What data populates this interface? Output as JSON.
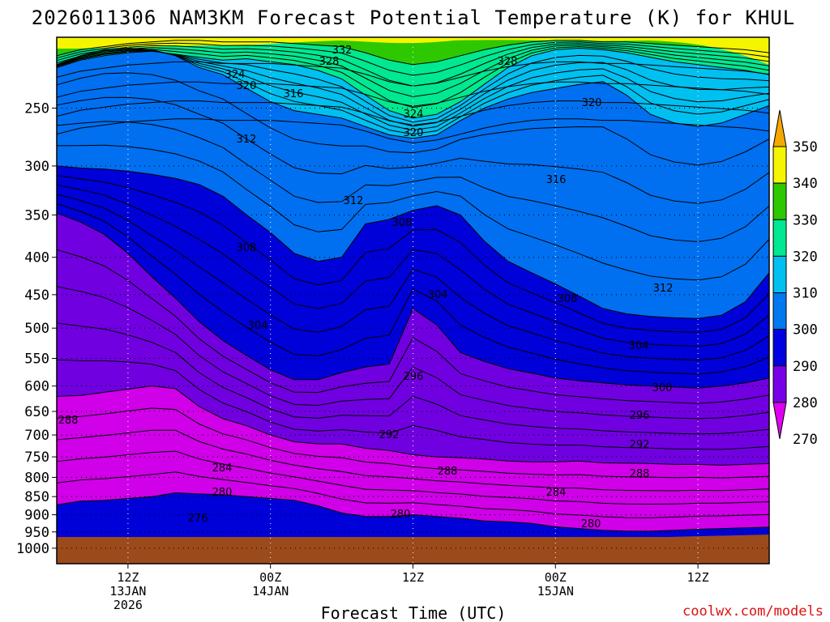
{
  "chart_data": {
    "type": "heatmap",
    "title": "2026011306 NAM3KM Forecast Potential Temperature (K) for KHUL",
    "xlabel": "Forecast Time (UTC)",
    "ylabel": "",
    "credit": "coolwx.com/models",
    "x_ticks": [
      {
        "hour": 6,
        "lines": [
          "12Z",
          "13JAN",
          "2026"
        ]
      },
      {
        "hour": 18,
        "lines": [
          "00Z",
          "14JAN"
        ]
      },
      {
        "hour": 30,
        "lines": [
          "12Z"
        ]
      },
      {
        "hour": 42,
        "lines": [
          "00Z",
          "15JAN"
        ]
      },
      {
        "hour": 54,
        "lines": [
          "12Z"
        ]
      }
    ],
    "xlim_hours": [
      0,
      60
    ],
    "y_ticks": [
      "250",
      "300",
      "350",
      "400",
      "450",
      "500",
      "550",
      "600",
      "650",
      "700",
      "750",
      "800",
      "850",
      "900",
      "950",
      "1000"
    ],
    "ylim_hpa": [
      1050,
      200
    ],
    "colorbar": {
      "labels": [
        "350",
        "340",
        "330",
        "320",
        "310",
        "300",
        "290",
        "280",
        "270"
      ],
      "colors": [
        "#f5a800",
        "#f5f500",
        "#2ec800",
        "#00e890",
        "#00c0f0",
        "#0078f0",
        "#0000e0",
        "#7800e8",
        "#e000f0"
      ]
    },
    "contour_labels": [
      "332",
      "328",
      "328",
      "324",
      "324",
      "320",
      "320",
      "320",
      "316",
      "316",
      "312",
      "312",
      "312",
      "308",
      "308",
      "308",
      "304",
      "304",
      "304",
      "300",
      "296",
      "296",
      "292",
      "292",
      "288",
      "288",
      "288",
      "284",
      "284",
      "280",
      "280",
      "280",
      "276"
    ],
    "series": [
      {
        "name": "theta_280",
        "color": "#d000e8",
        "values": [
          872,
          862,
          860,
          855,
          850,
          840,
          843,
          845,
          850,
          855,
          860,
          875,
          895,
          905,
          905,
          900,
          905,
          910,
          918,
          920,
          925,
          935,
          940,
          945,
          948,
          948,
          945,
          942,
          940,
          938,
          936
        ]
      },
      {
        "name": "theta_290",
        "color": "#7000e0",
        "values": [
          620,
          618,
          612,
          606,
          600,
          605,
          640,
          665,
          680,
          700,
          715,
          720,
          720,
          730,
          735,
          745,
          750,
          752,
          755,
          760,
          762,
          762,
          760,
          764,
          765,
          766,
          768,
          768,
          770,
          768,
          766
        ]
      },
      {
        "name": "theta_300",
        "color": "#0000d8",
        "values": [
          348,
          358,
          372,
          395,
          425,
          455,
          490,
          520,
          545,
          570,
          588,
          588,
          575,
          565,
          560,
          470,
          495,
          540,
          555,
          568,
          576,
          585,
          590,
          594,
          598,
          600,
          602,
          604,
          600,
          594,
          585
        ]
      },
      {
        "name": "theta_310",
        "color": "#0070f0",
        "values": [
          300,
          302,
          303,
          305,
          308,
          312,
          318,
          330,
          350,
          370,
          395,
          405,
          400,
          360,
          355,
          345,
          340,
          350,
          380,
          405,
          420,
          435,
          452,
          470,
          478,
          482,
          484,
          485,
          480,
          460,
          420
        ]
      },
      {
        "name": "theta_320",
        "color": "#00c0f0",
        "values": [
          218,
          212,
          208,
          207,
          208,
          212,
          220,
          225,
          235,
          245,
          252,
          255,
          258,
          265,
          272,
          275,
          272,
          260,
          250,
          243,
          238,
          235,
          232,
          230,
          240,
          255,
          262,
          265,
          262,
          255,
          248
        ]
      },
      {
        "name": "theta_330",
        "color": "#00e890",
        "values": [
          220,
          215,
          212,
          210,
          209,
          211,
          213,
          215,
          214,
          216,
          218,
          222,
          228,
          240,
          252,
          258,
          255,
          245,
          232,
          220,
          212,
          208,
          207,
          208,
          210,
          213,
          216,
          218,
          220,
          222,
          225
        ]
      },
      {
        "name": "theta_340",
        "color": "#2ec800",
        "values": [
          212,
          208,
          206,
          204,
          203,
          202,
          202,
          203,
          203,
          203,
          204,
          205,
          206,
          210,
          215,
          218,
          216,
          212,
          208,
          205,
          203,
          202,
          202,
          203,
          203,
          204,
          205,
          206,
          207,
          208,
          210
        ]
      }
    ]
  }
}
